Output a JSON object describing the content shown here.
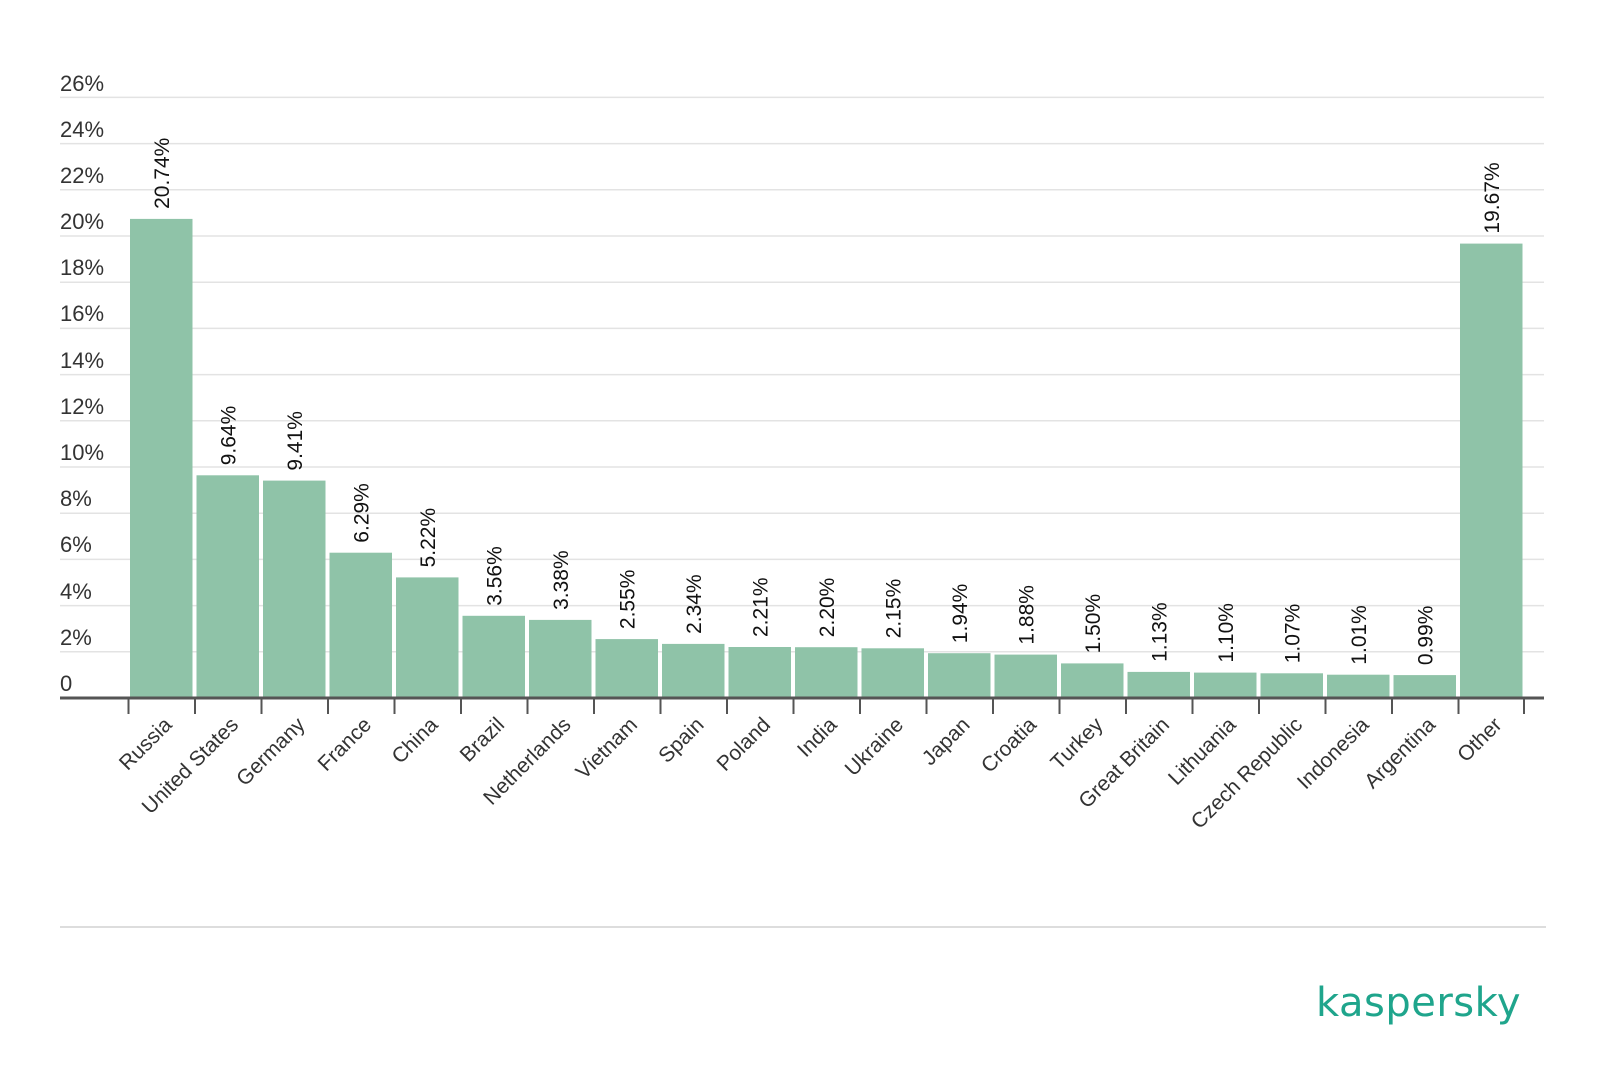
{
  "brand": {
    "name": "kaspersky",
    "color": "#1fa58c"
  },
  "colors": {
    "bar": "#8fc3a8",
    "grid": "#e3e3e3",
    "axis": "#555555",
    "footer_rule": "#dddddd"
  },
  "chart_data": {
    "type": "bar",
    "ylim": [
      0,
      26
    ],
    "yticks": [
      {
        "value": 0,
        "label": "0"
      },
      {
        "value": 2,
        "label": "2%"
      },
      {
        "value": 4,
        "label": "4%"
      },
      {
        "value": 6,
        "label": "6%"
      },
      {
        "value": 8,
        "label": "8%"
      },
      {
        "value": 10,
        "label": "10%"
      },
      {
        "value": 12,
        "label": "12%"
      },
      {
        "value": 14,
        "label": "14%"
      },
      {
        "value": 16,
        "label": "16%"
      },
      {
        "value": 18,
        "label": "18%"
      },
      {
        "value": 20,
        "label": "20%"
      },
      {
        "value": 22,
        "label": "22%"
      },
      {
        "value": 24,
        "label": "24%"
      },
      {
        "value": 26,
        "label": "26%"
      }
    ],
    "grid": true,
    "categories": [
      "Russia",
      "United States",
      "Germany",
      "France",
      "China",
      "Brazil",
      "Netherlands",
      "Vietnam",
      "Spain",
      "Poland",
      "India",
      "Ukraine",
      "Japan",
      "Croatia",
      "Turkey",
      "Great Britain",
      "Lithuania",
      "Czech Republic",
      "Indonesia",
      "Argentina",
      "Other"
    ],
    "values": [
      20.74,
      9.64,
      9.41,
      6.29,
      5.22,
      3.56,
      3.38,
      2.55,
      2.34,
      2.21,
      2.2,
      2.15,
      1.94,
      1.88,
      1.5,
      1.13,
      1.1,
      1.07,
      1.01,
      0.99,
      19.67
    ],
    "value_labels": [
      "20.74%",
      "9.64%",
      "9.41%",
      "6.29%",
      "5.22%",
      "3.56%",
      "3.38%",
      "2.55%",
      "2.34%",
      "2.21%",
      "2.20%",
      "2.15%",
      "1.94%",
      "1.88%",
      "1.50%",
      "1.13%",
      "1.10%",
      "1.07%",
      "1.01%",
      "0.99%",
      "19.67%"
    ]
  }
}
